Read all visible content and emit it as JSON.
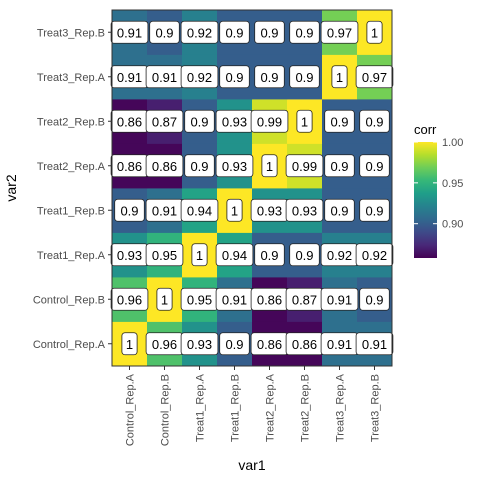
{
  "chart_data": {
    "type": "heatmap",
    "title": "",
    "xlabel": "var1",
    "ylabel": "var2",
    "x_categories": [
      "Control_Rep.A",
      "Control_Rep.B",
      "Treat1_Rep.A",
      "Treat1_Rep.B",
      "Treat2_Rep.A",
      "Treat2_Rep.B",
      "Treat3_Rep.A",
      "Treat3_Rep.B"
    ],
    "y_categories": [
      "Control_Rep.A",
      "Control_Rep.B",
      "Treat1_Rep.A",
      "Treat1_Rep.B",
      "Treat2_Rep.A",
      "Treat2_Rep.B",
      "Treat3_Rep.A",
      "Treat3_Rep.B"
    ],
    "values": [
      [
        1,
        0.96,
        0.93,
        0.9,
        0.86,
        0.86,
        0.91,
        0.91
      ],
      [
        0.96,
        1,
        0.95,
        0.91,
        0.86,
        0.87,
        0.91,
        0.9
      ],
      [
        0.93,
        0.95,
        1,
        0.94,
        0.9,
        0.9,
        0.92,
        0.92
      ],
      [
        0.9,
        0.91,
        0.94,
        1,
        0.93,
        0.93,
        0.9,
        0.9
      ],
      [
        0.86,
        0.86,
        0.9,
        0.93,
        1,
        0.99,
        0.9,
        0.9
      ],
      [
        0.86,
        0.87,
        0.9,
        0.93,
        0.99,
        1,
        0.9,
        0.9
      ],
      [
        0.91,
        0.91,
        0.92,
        0.9,
        0.9,
        0.9,
        1,
        0.97
      ],
      [
        0.91,
        0.9,
        0.92,
        0.9,
        0.9,
        0.9,
        0.97,
        1
      ]
    ],
    "labels": [
      [
        "1",
        "0.96",
        "0.93",
        "0.9",
        "0.86",
        "0.86",
        "0.91",
        "0.91"
      ],
      [
        "0.96",
        "1",
        "0.95",
        "0.91",
        "0.86",
        "0.87",
        "0.91",
        "0.9"
      ],
      [
        "0.93",
        "0.95",
        "1",
        "0.94",
        "0.9",
        "0.9",
        "0.92",
        "0.92"
      ],
      [
        "0.9",
        "0.91",
        "0.94",
        "1",
        "0.93",
        "0.93",
        "0.9",
        "0.9"
      ],
      [
        "0.86",
        "0.86",
        "0.9",
        "0.93",
        "1",
        "0.99",
        "0.9",
        "0.9"
      ],
      [
        "0.86",
        "0.87",
        "0.9",
        "0.93",
        "0.99",
        "1",
        "0.9",
        "0.9"
      ],
      [
        "0.91",
        "0.91",
        "0.92",
        "0.9",
        "0.9",
        "0.9",
        "1",
        "0.97"
      ],
      [
        "0.91",
        "0.9",
        "0.92",
        "0.9",
        "0.9",
        "0.9",
        "0.97",
        "1"
      ]
    ],
    "legend": {
      "title": "corr",
      "min": 0.858,
      "max": 1.0,
      "ticks": [
        1.0,
        0.95,
        0.9
      ],
      "tick_labels": [
        "1.00",
        "0.95",
        "0.90"
      ],
      "palette": "viridis",
      "colors": [
        "#440154",
        "#482878",
        "#3E4A89",
        "#31688E",
        "#26828E",
        "#1F9E89",
        "#35B779",
        "#6DCD59",
        "#B4DE2C",
        "#FDE725"
      ],
      "position": "right"
    },
    "panel_background": "#ffffff",
    "grid": false
  }
}
